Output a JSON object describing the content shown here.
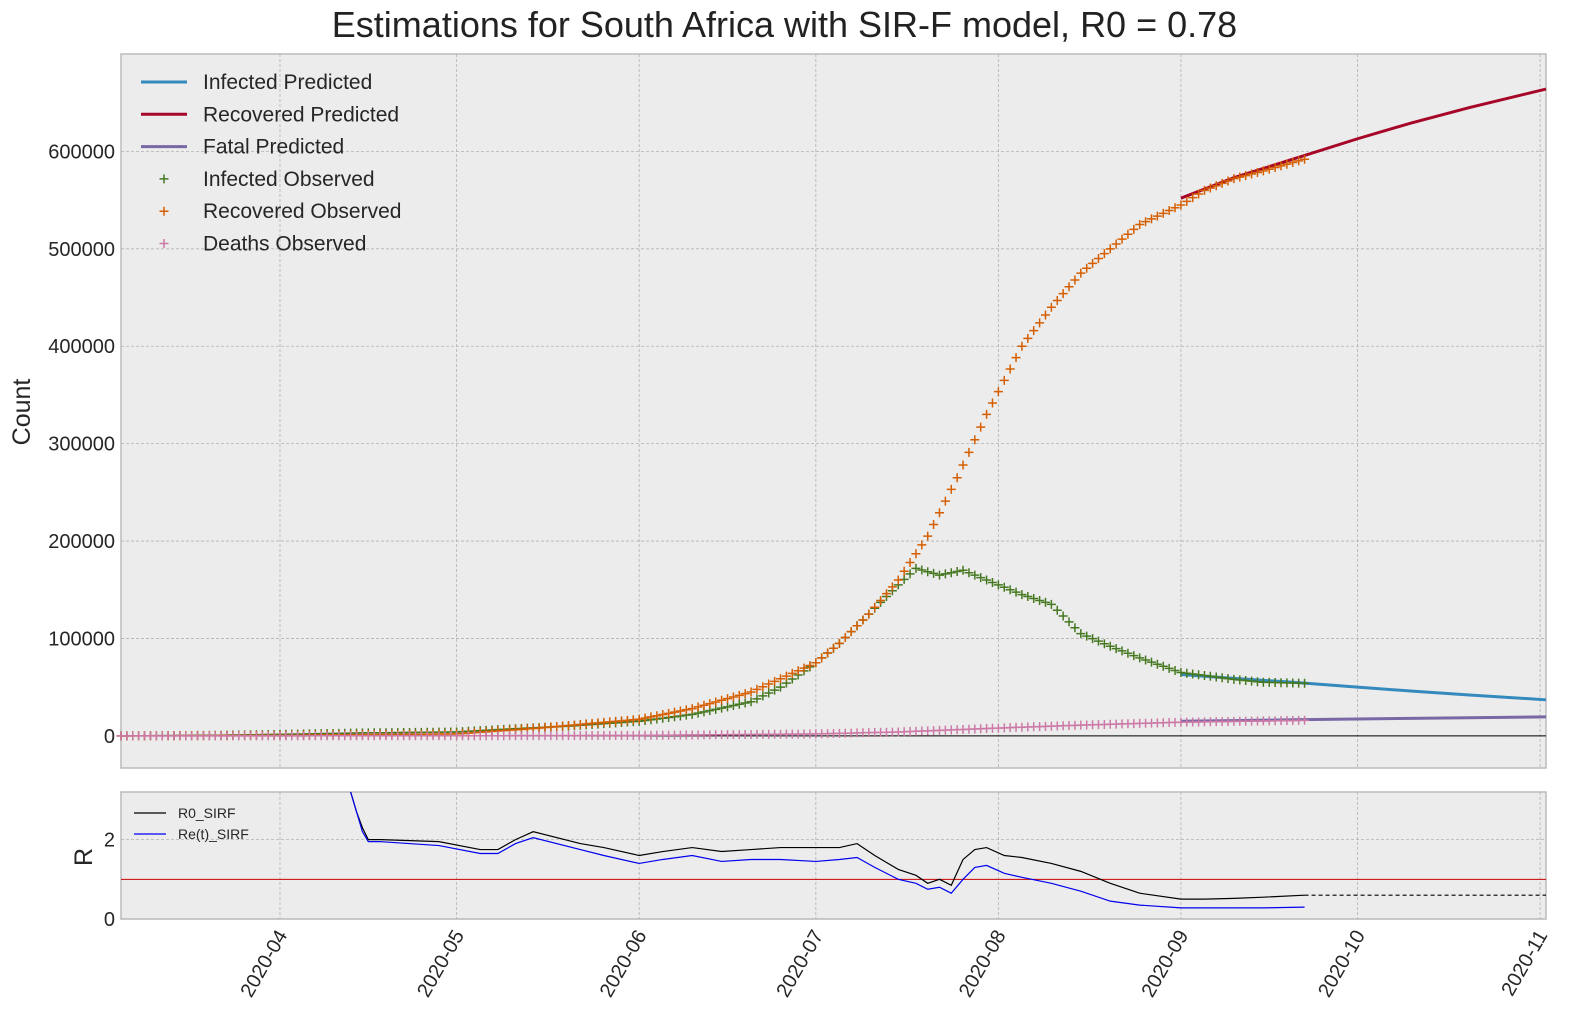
{
  "chart_data": [
    {
      "type": "line",
      "title": "Estimations for South Africa with SIR-F model, R0 = 0.78",
      "ylabel": "Count",
      "xlabel": "",
      "xlim": [
        "2020-03-05",
        "2020-11-02"
      ],
      "ylim": [
        -33000,
        700000
      ],
      "yticks": [
        0,
        100000,
        200000,
        300000,
        400000,
        500000,
        600000
      ],
      "xticks": [
        "2020-04",
        "2020-05",
        "2020-06",
        "2020-07",
        "2020-08",
        "2020-09",
        "2020-10",
        "2020-11"
      ],
      "grid": true,
      "legend_position": "top-left",
      "series": [
        {
          "name": "Infected Predicted",
          "kind": "line",
          "color": "#348ABD",
          "x": [
            "2020-09-01",
            "2020-09-10",
            "2020-09-20",
            "2020-10-01",
            "2020-10-10",
            "2020-10-20",
            "2020-11-02"
          ],
          "y": [
            63000,
            59000,
            55000,
            50000,
            46000,
            42000,
            37000
          ]
        },
        {
          "name": "Recovered Predicted",
          "kind": "line",
          "color": "#A60628",
          "x": [
            "2020-09-01",
            "2020-09-10",
            "2020-09-20",
            "2020-10-01",
            "2020-10-10",
            "2020-10-20",
            "2020-11-02"
          ],
          "y": [
            552000,
            573000,
            592000,
            613000,
            629000,
            645000,
            664000
          ]
        },
        {
          "name": "Fatal Predicted",
          "kind": "line",
          "color": "#7A68A6",
          "x": [
            "2020-09-01",
            "2020-09-20",
            "2020-10-10",
            "2020-11-02"
          ],
          "y": [
            15000,
            16500,
            18000,
            19500
          ]
        },
        {
          "name": "Infected Observed",
          "kind": "marker",
          "color": "#467821",
          "x": [
            "2020-03-05",
            "2020-03-20",
            "2020-04-01",
            "2020-04-15",
            "2020-05-01",
            "2020-05-10",
            "2020-05-20",
            "2020-06-01",
            "2020-06-10",
            "2020-06-20",
            "2020-06-25",
            "2020-07-01",
            "2020-07-05",
            "2020-07-10",
            "2020-07-15",
            "2020-07-18",
            "2020-07-22",
            "2020-07-26",
            "2020-08-01",
            "2020-08-05",
            "2020-08-10",
            "2020-08-15",
            "2020-08-20",
            "2020-08-25",
            "2020-09-01",
            "2020-09-05",
            "2020-09-10",
            "2020-09-15",
            "2020-09-22"
          ],
          "y": [
            0,
            500,
            1500,
            3000,
            4000,
            7000,
            10000,
            15000,
            22000,
            35000,
            50000,
            75000,
            95000,
            125000,
            155000,
            172000,
            165000,
            170000,
            155000,
            145000,
            135000,
            105000,
            92000,
            80000,
            65000,
            62000,
            58000,
            55000,
            54000
          ]
        },
        {
          "name": "Recovered Observed",
          "kind": "marker",
          "color": "#D55E00",
          "x": [
            "2020-03-05",
            "2020-04-01",
            "2020-05-01",
            "2020-05-15",
            "2020-06-01",
            "2020-06-10",
            "2020-06-20",
            "2020-07-01",
            "2020-07-05",
            "2020-07-10",
            "2020-07-15",
            "2020-07-20",
            "2020-07-25",
            "2020-07-30",
            "2020-08-05",
            "2020-08-10",
            "2020-08-15",
            "2020-08-20",
            "2020-08-25",
            "2020-09-01",
            "2020-09-05",
            "2020-09-10",
            "2020-09-15",
            "2020-09-22"
          ],
          "y": [
            0,
            500,
            2000,
            8000,
            17000,
            28000,
            45000,
            75000,
            95000,
            125000,
            160000,
            205000,
            265000,
            330000,
            400000,
            440000,
            475000,
            500000,
            525000,
            545000,
            560000,
            572000,
            580000,
            592000
          ]
        },
        {
          "name": "Deaths Observed",
          "kind": "marker",
          "color": "#CC79A7",
          "x": [
            "2020-03-05",
            "2020-05-01",
            "2020-06-01",
            "2020-07-01",
            "2020-07-15",
            "2020-08-01",
            "2020-08-15",
            "2020-09-01",
            "2020-09-22"
          ],
          "y": [
            0,
            80,
            400,
            2000,
            4000,
            8000,
            11000,
            14000,
            16000
          ]
        }
      ]
    },
    {
      "type": "line",
      "title": "",
      "ylabel": "R",
      "xlabel": "",
      "xlim": [
        "2020-03-05",
        "2020-11-02"
      ],
      "ylim": [
        0,
        3.2
      ],
      "yticks": [
        0,
        2
      ],
      "reference_line": {
        "value": 1,
        "color": "#cc0000"
      },
      "grid": true,
      "legend_position": "top-left",
      "series": [
        {
          "name": "R0_SIRF",
          "kind": "line",
          "color": "#000000",
          "x": [
            "2020-04-13",
            "2020-04-14",
            "2020-04-15",
            "2020-04-16",
            "2020-04-18",
            "2020-04-28",
            "2020-05-05",
            "2020-05-08",
            "2020-05-11",
            "2020-05-14",
            "2020-05-22",
            "2020-05-26",
            "2020-06-01",
            "2020-06-05",
            "2020-06-10",
            "2020-06-15",
            "2020-06-20",
            "2020-06-25",
            "2020-07-01",
            "2020-07-05",
            "2020-07-08",
            "2020-07-11",
            "2020-07-15",
            "2020-07-18",
            "2020-07-20",
            "2020-07-22",
            "2020-07-24",
            "2020-07-26",
            "2020-07-28",
            "2020-07-30",
            "2020-08-02",
            "2020-08-05",
            "2020-08-10",
            "2020-08-15",
            "2020-08-20",
            "2020-08-25",
            "2020-09-01",
            "2020-09-05",
            "2020-09-10",
            "2020-09-15",
            "2020-09-22"
          ],
          "y": [
            3.2,
            2.7,
            2.3,
            2.0,
            2.0,
            1.95,
            1.75,
            1.75,
            2.0,
            2.2,
            1.9,
            1.8,
            1.6,
            1.7,
            1.8,
            1.7,
            1.75,
            1.8,
            1.8,
            1.8,
            1.9,
            1.6,
            1.25,
            1.1,
            0.9,
            1.0,
            0.85,
            1.5,
            1.75,
            1.8,
            1.6,
            1.55,
            1.4,
            1.2,
            0.9,
            0.65,
            0.5,
            0.5,
            0.52,
            0.55,
            0.6
          ]
        },
        {
          "name": "Re(t)_SIRF",
          "kind": "line",
          "color": "#0000ee",
          "x": [
            "2020-04-13",
            "2020-04-14",
            "2020-04-15",
            "2020-04-16",
            "2020-04-18",
            "2020-04-28",
            "2020-05-05",
            "2020-05-08",
            "2020-05-11",
            "2020-05-14",
            "2020-05-22",
            "2020-05-26",
            "2020-06-01",
            "2020-06-05",
            "2020-06-10",
            "2020-06-15",
            "2020-06-20",
            "2020-06-25",
            "2020-07-01",
            "2020-07-05",
            "2020-07-08",
            "2020-07-11",
            "2020-07-15",
            "2020-07-18",
            "2020-07-20",
            "2020-07-22",
            "2020-07-24",
            "2020-07-26",
            "2020-07-28",
            "2020-07-30",
            "2020-08-02",
            "2020-08-05",
            "2020-08-10",
            "2020-08-15",
            "2020-08-20",
            "2020-08-25",
            "2020-09-01",
            "2020-09-05",
            "2020-09-10",
            "2020-09-15",
            "2020-09-22"
          ],
          "y": [
            3.2,
            2.7,
            2.2,
            1.95,
            1.95,
            1.85,
            1.65,
            1.65,
            1.9,
            2.05,
            1.75,
            1.6,
            1.4,
            1.5,
            1.6,
            1.45,
            1.5,
            1.5,
            1.45,
            1.5,
            1.55,
            1.3,
            1.0,
            0.9,
            0.75,
            0.8,
            0.65,
            1.0,
            1.3,
            1.35,
            1.15,
            1.05,
            0.9,
            0.7,
            0.45,
            0.35,
            0.28,
            0.28,
            0.28,
            0.28,
            0.3
          ]
        },
        {
          "kind": "dashed-line",
          "color": "#000000",
          "x": [
            "2020-09-22",
            "2020-11-02"
          ],
          "y": [
            0.6,
            0.6
          ]
        }
      ]
    }
  ]
}
